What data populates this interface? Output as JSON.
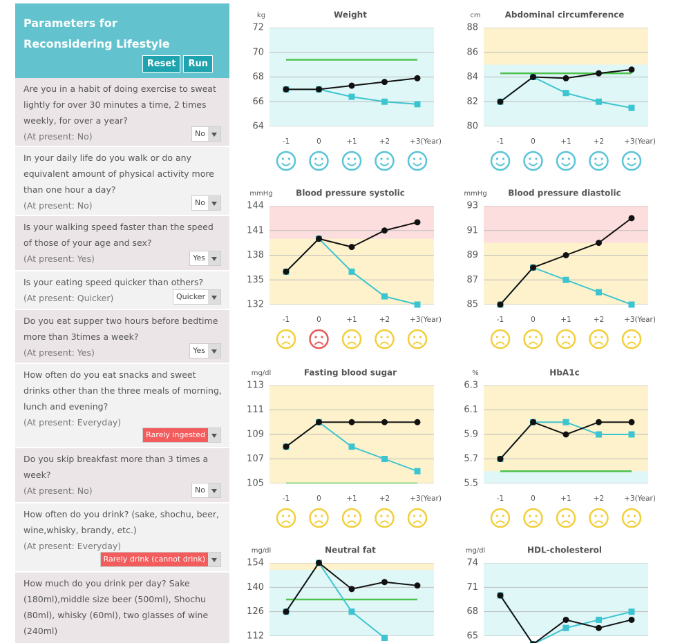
{
  "panel": {
    "title": "Parameters for Reconsidering Lifestyle",
    "buttons": [
      "Reset",
      "Run"
    ],
    "questions": [
      {
        "text": "Are you in a habit of doing exercise to sweat lightly for over 30 minutes a time, 2 times weekly, for over a year?",
        "present": "(At present: No)",
        "answer": "No"
      },
      {
        "text": "In your daily life do you walk or do any equivalent amount of physical activity more than one hour a day?",
        "present": "(At present: No)",
        "answer": "No"
      },
      {
        "text": "Is your walking speed faster than the speed of those of your age and sex?",
        "present": "(At present: Yes)",
        "answer": "Yes"
      },
      {
        "text": "Is your eating speed quicker than others?",
        "present": "(At present: Quicker)",
        "answer": "Quicker"
      },
      {
        "text": "Do you eat supper two hours before bedtime more than 3times a week?",
        "present": "(At present: Yes)",
        "answer": "Yes"
      },
      {
        "text": "How often do you eat snacks and sweet drinks other than the three meals of morning, lunch and evening?",
        "present": "(At present: Everyday)",
        "answer": "Rarely ingested",
        "answer_color": "#f25c5c"
      },
      {
        "text": "Do you skip breakfast more than 3 times a week?",
        "present": "(At present: No)",
        "answer": "No"
      },
      {
        "text": "How often do you drink? (sake, shochu, beer, wine,whisky, brandy, etc.)",
        "present": "(At present: Everyday)",
        "answer": "Rarely drink (cannot drink)",
        "answer_color": "#f25c5c"
      },
      {
        "text": "How much do you drink per day? Sake (180ml),middle size beer (500ml), Shochu (80ml), whisky (60ml), two glasses of wine (240ml)"
      }
    ]
  },
  "chart_data": [
    {
      "type": "line",
      "title": "Weight",
      "unit": "kg",
      "categories": [
        "-1",
        "0",
        "+1",
        "+2",
        "+3(Year)"
      ],
      "ylim": [
        64,
        72
      ],
      "yticks": [
        64,
        66,
        68,
        70,
        72
      ],
      "background": "#e0f7f7",
      "bands": [],
      "target": 69.4,
      "target_color": "#4cc24c",
      "series": [
        {
          "color": "#111111",
          "marker": "circle",
          "values": [
            67,
            67,
            67.3,
            67.6,
            67.9
          ]
        },
        {
          "color": "#3cc4d0",
          "marker": "square",
          "values": [
            67,
            67,
            66.4,
            66,
            65.8
          ]
        }
      ],
      "face_mood": "happy",
      "face_colors": [
        "#5ac4d8",
        "#5ac4d8",
        "#5ac4d8",
        "#5ac4d8",
        "#5ac4d8"
      ]
    },
    {
      "type": "line",
      "title": "Abdominal circumference",
      "unit": "cm",
      "categories": [
        "-1",
        "0",
        "+1",
        "+2",
        "+3(Year)"
      ],
      "ylim": [
        80,
        88
      ],
      "yticks": [
        80,
        82,
        84,
        86,
        88
      ],
      "background": "#e0f7f7",
      "bands": [
        {
          "from": 85,
          "to": 88,
          "color": "#fdf2cc"
        }
      ],
      "target": 84.3,
      "target_color": "#4cc24c",
      "series": [
        {
          "color": "#111111",
          "marker": "circle",
          "values": [
            82,
            84,
            83.9,
            84.3,
            84.6
          ]
        },
        {
          "color": "#3cc4d0",
          "marker": "square",
          "values": [
            82,
            84,
            82.7,
            82,
            81.5
          ]
        }
      ],
      "face_mood": "happy",
      "face_colors": [
        "#5ac4d8",
        "#5ac4d8",
        "#5ac4d8",
        "#5ac4d8",
        "#5ac4d8"
      ]
    },
    {
      "type": "line",
      "title": "Blood pressure systolic",
      "unit": "mmHg",
      "categories": [
        "-1",
        "0",
        "+1",
        "+2",
        "+3(Year)"
      ],
      "ylim": [
        132,
        144
      ],
      "yticks": [
        132,
        135,
        138,
        141,
        144
      ],
      "background": "#fdf2cc",
      "bands": [
        {
          "from": 140,
          "to": 144,
          "color": "#fcdede"
        }
      ],
      "series": [
        {
          "color": "#111111",
          "marker": "circle",
          "values": [
            136,
            140,
            139,
            141,
            142
          ]
        },
        {
          "color": "#3cc4d0",
          "marker": "square",
          "values": [
            136,
            140,
            136,
            133,
            132
          ]
        }
      ],
      "face_mood": "sad",
      "face_colors": [
        "#f2cf3c",
        "#e85a5a",
        "#f2cf3c",
        "#f2cf3c",
        "#f2cf3c"
      ]
    },
    {
      "type": "line",
      "title": "Blood pressure diastolic",
      "unit": "mmHg",
      "categories": [
        "-1",
        "0",
        "+1",
        "+2",
        "+3(Year)"
      ],
      "ylim": [
        85,
        93
      ],
      "yticks": [
        85,
        87,
        89,
        91,
        93
      ],
      "background": "#fdf2cc",
      "bands": [
        {
          "from": 90,
          "to": 93,
          "color": "#fcdede"
        }
      ],
      "series": [
        {
          "color": "#111111",
          "marker": "circle",
          "values": [
            85,
            88,
            89,
            90,
            92
          ]
        },
        {
          "color": "#3cc4d0",
          "marker": "square",
          "values": [
            85,
            88,
            87,
            86,
            85
          ]
        }
      ],
      "face_mood": "sad",
      "face_colors": [
        "#f2cf3c",
        "#f2cf3c",
        "#f2cf3c",
        "#f2cf3c",
        "#f2cf3c"
      ]
    },
    {
      "type": "line",
      "title": "Fasting blood sugar",
      "unit": "mg/dl",
      "categories": [
        "-1",
        "0",
        "+1",
        "+2",
        "+3(Year)"
      ],
      "ylim": [
        105,
        113
      ],
      "yticks": [
        105,
        107,
        109,
        111,
        113
      ],
      "background": "#fdf2cc",
      "bands": [],
      "target": 105,
      "target_color": "#4cc24c",
      "series": [
        {
          "color": "#111111",
          "marker": "circle",
          "values": [
            108,
            110,
            110,
            110,
            110
          ]
        },
        {
          "color": "#3cc4d0",
          "marker": "square",
          "values": [
            108,
            110,
            108,
            107,
            106
          ]
        }
      ],
      "face_mood": "sad",
      "face_colors": [
        "#f2cf3c",
        "#f2cf3c",
        "#f2cf3c",
        "#f2cf3c",
        "#f2cf3c"
      ]
    },
    {
      "type": "line",
      "title": "HbA1c",
      "unit": "%",
      "categories": [
        "-1",
        "0",
        "+1",
        "+2",
        "+3(Year)"
      ],
      "ylim": [
        5.5,
        6.3
      ],
      "yticks": [
        5.5,
        5.7,
        5.9,
        6.1,
        6.3
      ],
      "background": "#e0f7f7",
      "bands": [
        {
          "from": 5.6,
          "to": 6.3,
          "color": "#fdf2cc"
        }
      ],
      "target": 5.6,
      "target_color": "#4cc24c",
      "series": [
        {
          "color": "#111111",
          "marker": "circle",
          "values": [
            5.7,
            6.0,
            5.9,
            6.0,
            6.0
          ]
        },
        {
          "color": "#3cc4d0",
          "marker": "square",
          "values": [
            5.7,
            6.0,
            6.0,
            5.9,
            5.9
          ]
        }
      ],
      "face_mood": "sad",
      "face_colors": [
        "#f2cf3c",
        "#f2cf3c",
        "#f2cf3c",
        "#f2cf3c",
        "#f2cf3c"
      ]
    },
    {
      "type": "line",
      "title": "Neutral fat",
      "unit": "mg/dl",
      "ylim": [
        112,
        154
      ],
      "yticks": [
        112,
        126,
        140,
        154
      ],
      "background": "#e0f7f7",
      "bands": [
        {
          "from": 150,
          "to": 154,
          "color": "#fdf2cc"
        }
      ],
      "target": 133,
      "target_color": "#4cc24c",
      "series": [
        {
          "color": "#111111",
          "marker": "circle",
          "values": [
            126,
            154,
            139,
            143,
            141
          ]
        },
        {
          "color": "#3cc4d0",
          "marker": "square",
          "values": [
            126,
            154,
            126,
            111,
            null
          ]
        }
      ]
    },
    {
      "type": "line",
      "title": "HDL-cholesterol",
      "unit": "mg/dl",
      "ylim": [
        65,
        74
      ],
      "yticks": [
        65,
        68,
        71,
        74
      ],
      "background": "#e0f7f7",
      "bands": [],
      "series": [
        {
          "color": "#111111",
          "marker": "circle",
          "values": [
            70,
            64,
            67,
            66,
            67
          ]
        },
        {
          "color": "#3cc4d0",
          "marker": "square",
          "values": [
            70,
            64,
            66,
            67,
            68
          ]
        }
      ]
    }
  ]
}
